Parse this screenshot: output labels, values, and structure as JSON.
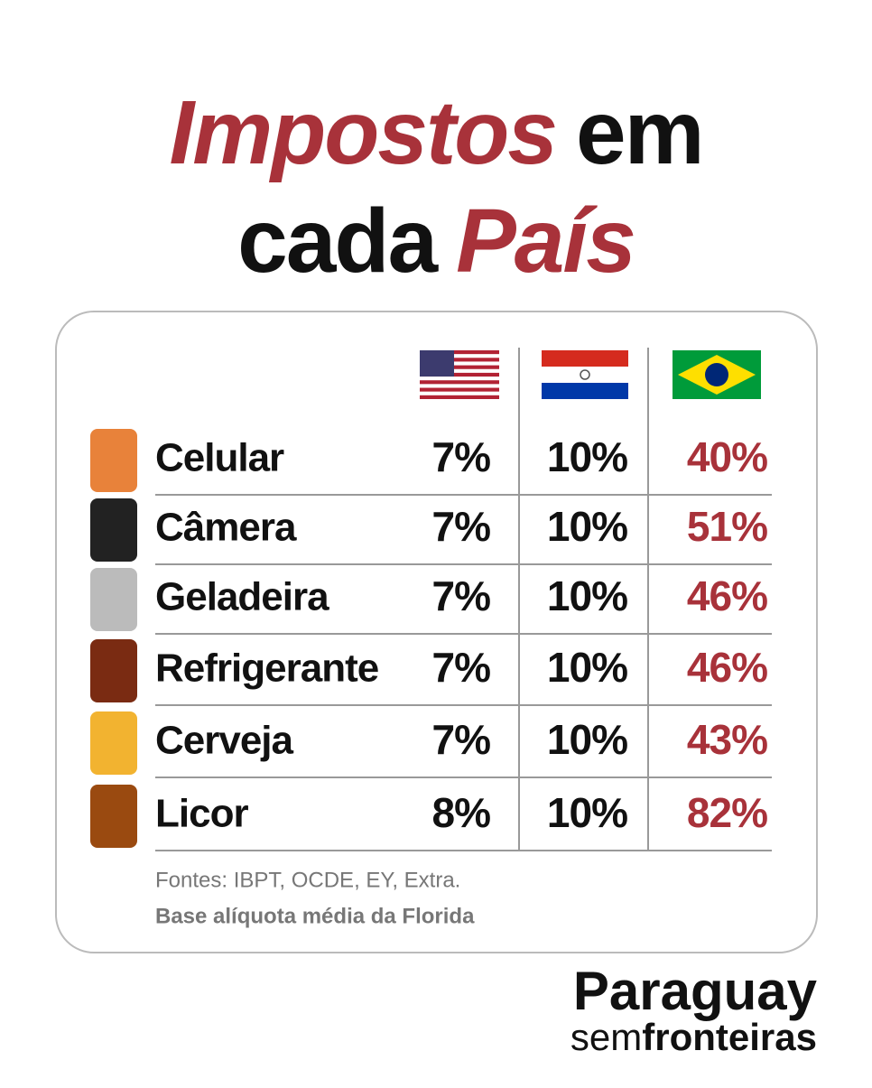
{
  "header": {
    "title_1a": "Impostos",
    "title_1b": "em",
    "title_2a": "cada",
    "title_2b": "País"
  },
  "table": {
    "rows": [
      [
        "Celular",
        "7%",
        "10%",
        "40%"
      ],
      [
        "Câmera",
        "7%",
        "10%",
        "51%"
      ],
      [
        "Geladeira",
        "7%",
        "10%",
        "46%"
      ],
      [
        "Refrigerante",
        "7%",
        "10%",
        "46%"
      ],
      [
        "Cerveja",
        "7%",
        "10%",
        "43%"
      ],
      [
        "Licor",
        "8%",
        "10%",
        "82%"
      ]
    ]
  },
  "footer": {
    "sources": "Fontes: IBPT, OCDE, EY, Extra.",
    "note": "Base alíquota média da Florida"
  },
  "brand": {
    "name": "Paraguay",
    "tag_light": "sem",
    "tag_bold": "fronteiras"
  }
}
